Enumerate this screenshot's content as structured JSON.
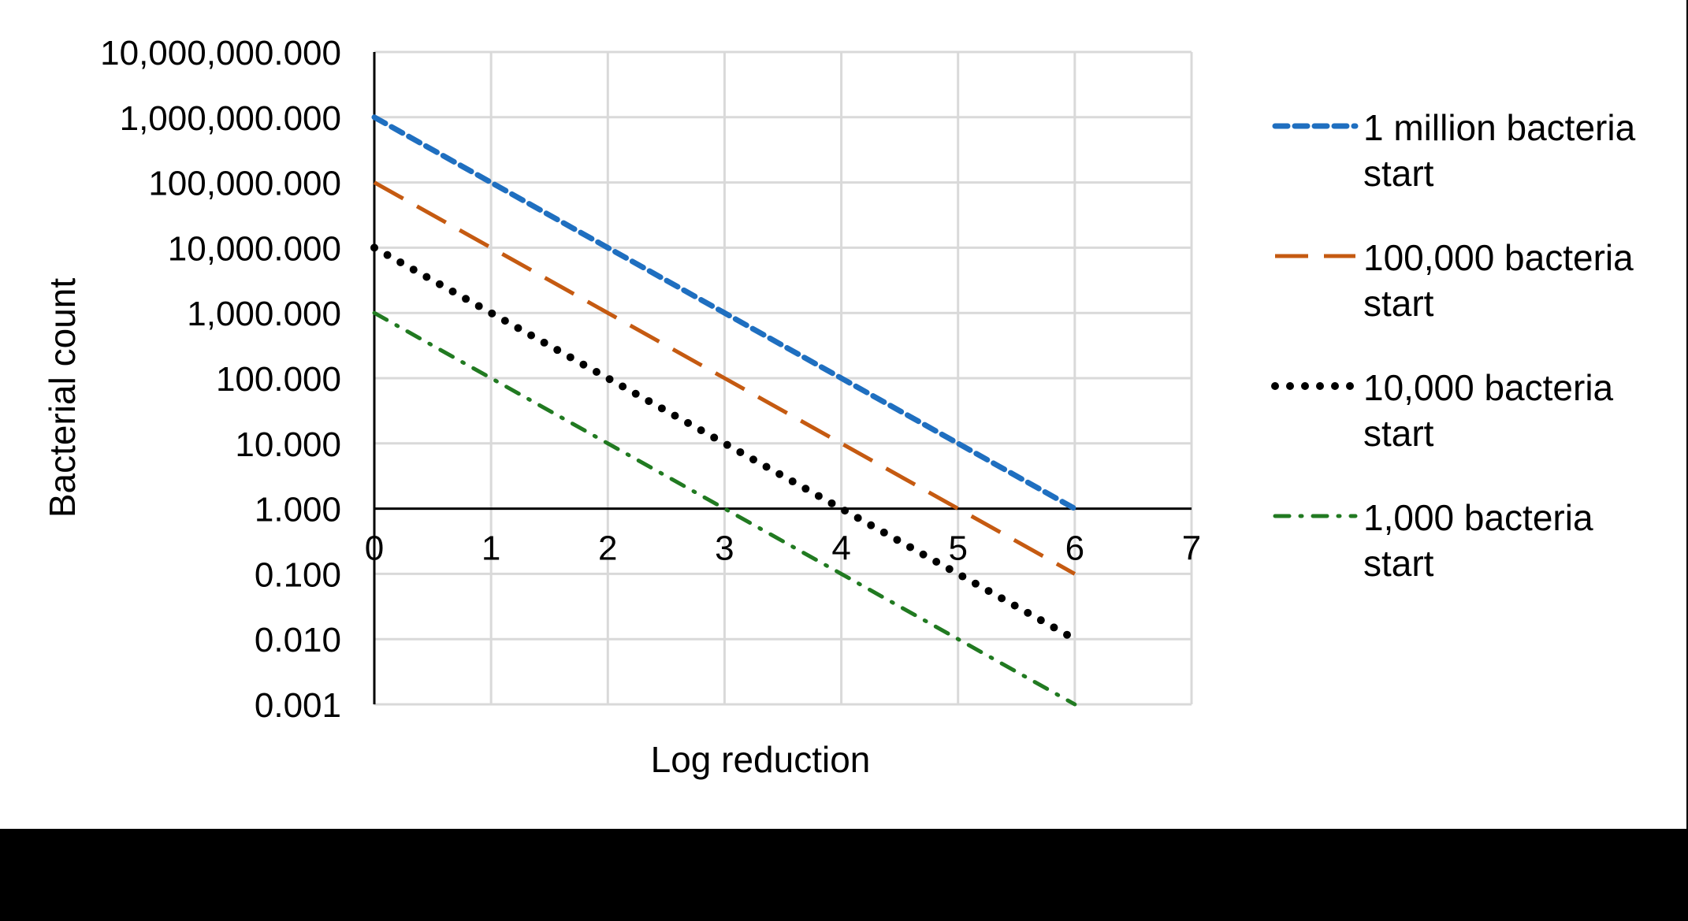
{
  "chart_data": {
    "type": "line",
    "title": "",
    "xlabel": "Log reduction",
    "ylabel": "Bacterial count",
    "yscale": "log",
    "xlim": [
      0,
      7
    ],
    "ylim": [
      0.001,
      10000000
    ],
    "grid": true,
    "legend_position": "right",
    "x_ticks": [
      "0",
      "1",
      "2",
      "3",
      "4",
      "5",
      "6",
      "7"
    ],
    "y_ticks": [
      "10,000,000.000",
      "1,000,000.000",
      "100,000.000",
      "10,000.000",
      "1,000.000",
      "100.000",
      "10.000",
      "1.000",
      "0.100",
      "0.010",
      "0.001"
    ],
    "x": [
      0,
      1,
      2,
      3,
      4,
      5,
      6
    ],
    "series": [
      {
        "name": "1 million bacteria start",
        "legend_lines": [
          "1 million bacteria",
          "start"
        ],
        "color": "#1f6fc0",
        "style": "short-dash",
        "values": [
          1000000,
          100000,
          10000,
          1000,
          100,
          10,
          1
        ]
      },
      {
        "name": "100,000 bacteria start",
        "legend_lines": [
          "100,000 bacteria",
          "start"
        ],
        "color": "#c55a11",
        "style": "long-dash",
        "values": [
          100000,
          10000,
          1000,
          100,
          10,
          1,
          0.1
        ]
      },
      {
        "name": "10,000 bacteria start",
        "legend_lines": [
          "10,000 bacteria",
          "start"
        ],
        "color": "#000000",
        "style": "round-dot",
        "values": [
          10000,
          1000,
          100,
          10,
          1,
          0.1,
          0.01
        ]
      },
      {
        "name": "1,000 bacteria start",
        "legend_lines": [
          "1,000 bacteria",
          "start"
        ],
        "color": "#217a21",
        "style": "dash-dot",
        "values": [
          1000,
          100,
          10,
          1,
          0.1,
          0.01,
          0.001
        ]
      }
    ]
  }
}
